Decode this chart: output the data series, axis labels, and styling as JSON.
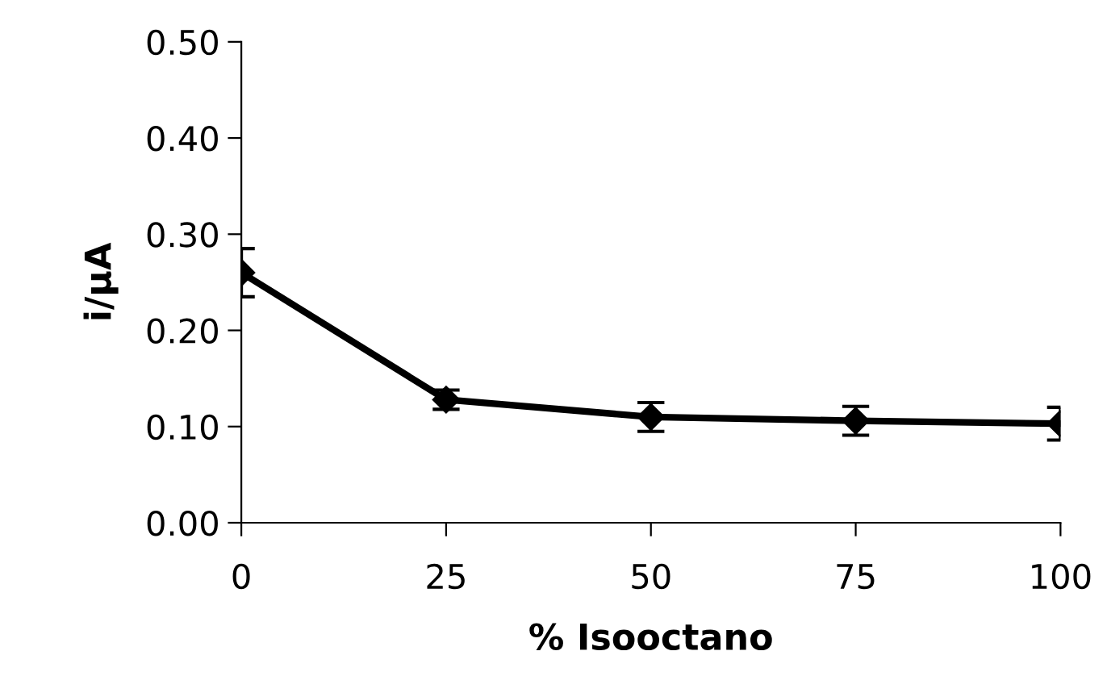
{
  "chart_data": {
    "type": "line",
    "xlabel": "% Isooctano",
    "ylabel": "i/µA",
    "x": [
      0,
      25,
      50,
      75,
      100
    ],
    "series": [
      {
        "color": "#000000",
        "values": [
          0.26,
          0.128,
          0.11,
          0.106,
          0.103
        ],
        "errors": [
          0.025,
          0.01,
          0.015,
          0.015,
          0.017
        ]
      }
    ],
    "xlim": [
      0,
      100
    ],
    "xticks": [
      0,
      25,
      50,
      75,
      100
    ],
    "ylim": [
      0,
      0.5
    ],
    "yticks": [
      {
        "value": 0,
        "label": "0.00"
      },
      {
        "value": 0.1,
        "label": "0.10"
      },
      {
        "value": 0.2,
        "label": "0.20"
      },
      {
        "value": 0.3,
        "label": "0.30"
      },
      {
        "value": 0.4,
        "label": "0.40"
      },
      {
        "value": 0.5,
        "label": "0.50"
      }
    ],
    "marker": "diamond",
    "line_style": "solid",
    "grid": false
  }
}
